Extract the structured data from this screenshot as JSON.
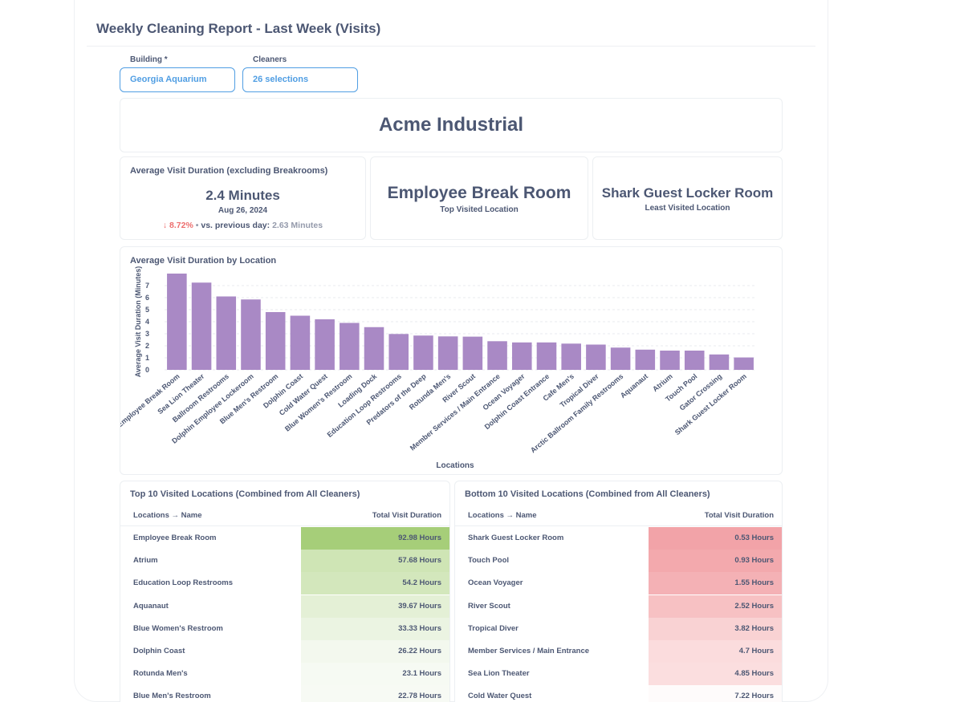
{
  "header": {
    "title": "Weekly Cleaning Report - Last Week (Visits)"
  },
  "filters": {
    "building": {
      "label": "Building *",
      "value": "Georgia Aquarium"
    },
    "cleaners": {
      "label": "Cleaners",
      "value": "26 selections"
    }
  },
  "brand": {
    "name": "Acme Industrial"
  },
  "avg_duration": {
    "title": "Average Visit Duration (excluding Breakrooms)",
    "value": "2.4 Minutes",
    "date": "Aug 26, 2024",
    "arrow": "↓",
    "change": "8.72%",
    "separator": "•",
    "compare_label": "vs. previous day:",
    "compare_value": "2.63 Minutes"
  },
  "top_location": {
    "name": "Employee Break Room",
    "label": "Top Visited Location"
  },
  "least_location": {
    "name": "Shark Guest Locker Room",
    "label": "Least Visited Location"
  },
  "chart_data": {
    "type": "bar",
    "title": "Average Visit Duration by Location",
    "xlabel": "Locations",
    "ylabel": "Average Visit Duration (Minutes)",
    "ylim": [
      0,
      8
    ],
    "yticks": [
      0,
      1,
      2,
      3,
      4,
      5,
      6,
      7
    ],
    "grid": true,
    "color": "#a989c5",
    "categories": [
      "Employee Break Room",
      "Sea Lion Theater",
      "Ballroom Restrooms",
      "Dolphin Employee Lockeroom",
      "Blue Men's Restroom",
      "Dolphin Coast",
      "Cold Water Quest",
      "Blue Women's Restroom",
      "Loading Dock",
      "Education Loop Restrooms",
      "Predators of the Deep",
      "Rotunda Men's",
      "River Scout",
      "Member Services / Main Entrance",
      "Ocean Voyager",
      "Dolphin Coast Entrance",
      "Cafe Men's",
      "Tropical Diver",
      "Arctic Ballroom Family Restrooms",
      "Aquanaut",
      "Atrium",
      "Touch Pool",
      "Gator Crossing",
      "Shark Guest Locker Room"
    ],
    "values": [
      8.0,
      7.25,
      6.1,
      5.85,
      4.8,
      4.5,
      4.2,
      3.9,
      3.55,
      2.98,
      2.85,
      2.78,
      2.76,
      2.38,
      2.28,
      2.28,
      2.18,
      2.1,
      1.85,
      1.68,
      1.6,
      1.6,
      1.28,
      1.03
    ]
  },
  "top10": {
    "title": "Top 10 Visited Locations (Combined from All Cleaners)",
    "col_name": "Locations → Name",
    "col_value": "Total Visit Duration",
    "rows": [
      {
        "name": "Employee Break Room",
        "value": "92.98 Hours",
        "color": "#a6ce79"
      },
      {
        "name": "Atrium",
        "value": "57.68 Hours",
        "color": "#cfe5b5"
      },
      {
        "name": "Education Loop Restrooms",
        "value": "54.2 Hours",
        "color": "#d3e7bc"
      },
      {
        "name": "Aquanaut",
        "value": "39.67 Hours",
        "color": "#e4f0d6"
      },
      {
        "name": "Blue Women's Restroom",
        "value": "33.33 Hours",
        "color": "#ebf4e2"
      },
      {
        "name": "Dolphin Coast",
        "value": "26.22 Hours",
        "color": "#f3f8ee"
      },
      {
        "name": "Rotunda Men's",
        "value": "23.1 Hours",
        "color": "#f6faf3"
      },
      {
        "name": "Blue Men's Restroom",
        "value": "22.78 Hours",
        "color": "#f7faf4"
      }
    ]
  },
  "bottom10": {
    "title": "Bottom 10 Visited Locations (Combined from All Cleaners)",
    "col_name": "Locations → Name",
    "col_value": "Total Visit Duration",
    "rows": [
      {
        "name": "Shark Guest Locker Room",
        "value": "0.53 Hours",
        "color": "#f2a3a8"
      },
      {
        "name": "Touch Pool",
        "value": "0.93 Hours",
        "color": "#f3a9ad"
      },
      {
        "name": "Ocean Voyager",
        "value": "1.55 Hours",
        "color": "#f4b1b5"
      },
      {
        "name": "River Scout",
        "value": "2.52 Hours",
        "color": "#f7c1c3"
      },
      {
        "name": "Tropical Diver",
        "value": "3.82 Hours",
        "color": "#f9d2d3"
      },
      {
        "name": "Member Services / Main Entrance",
        "value": "4.7 Hours",
        "color": "#fbdcdd"
      },
      {
        "name": "Sea Lion Theater",
        "value": "4.85 Hours",
        "color": "#fbdedf"
      },
      {
        "name": "Cold Water Quest",
        "value": "7.22 Hours",
        "color": "#fefbfb"
      }
    ]
  }
}
